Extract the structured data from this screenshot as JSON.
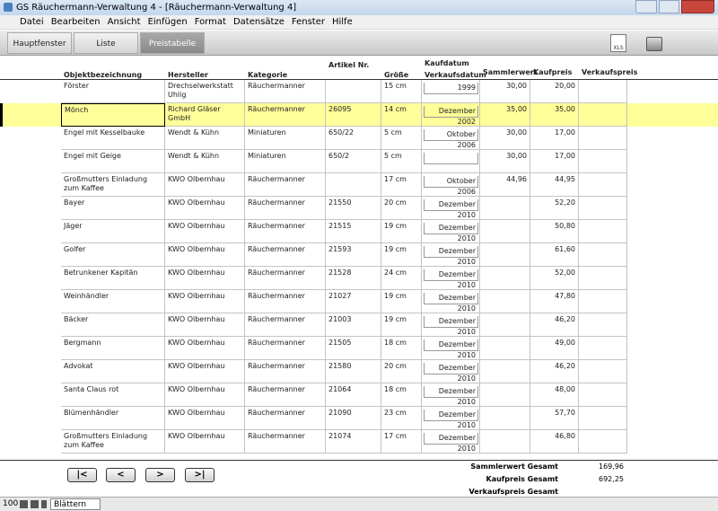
{
  "window": {
    "title": "GS Räuchermann-Verwaltung 4 - [Räuchermann-Verwaltung 4]",
    "menu": [
      "Datei",
      "Bearbeiten",
      "Ansicht",
      "Einfügen",
      "Format",
      "Datensätze",
      "Fenster",
      "Hilfe"
    ]
  },
  "tabs": [
    "Hauptfenster",
    "Liste",
    "Preistabelle"
  ],
  "active_tab": 2,
  "toolbar": {
    "xls_icon": "XLS"
  },
  "table": {
    "header_above": "Kaufdatum",
    "headers": [
      "Objektbezeichnung",
      "Hersteller",
      "Kategorie",
      "Artikel Nr.",
      "Größe",
      "Verkaufsdatum",
      "Sammlerwert",
      "Kaufpreis",
      "Verkaufspreis"
    ],
    "selected_row": 1,
    "rows": [
      [
        "Förster",
        "Drechselwerkstatt Uhlig",
        "Räuchermanner",
        null,
        "15 cm",
        "1999",
        "30,00",
        "20,00",
        null
      ],
      [
        "Mönch",
        "Richard Gläser GmbH",
        "Räuchermanner",
        "26095",
        "14 cm",
        "Dezember 2002",
        "35,00",
        "35,00",
        null
      ],
      [
        "Engel mit Kesselbauke",
        "Wendt & Kühn",
        "Miniaturen",
        "650/22",
        "5 cm",
        "Oktober 2006",
        "30,00",
        "17,00",
        null
      ],
      [
        "Engel mit Geige",
        "Wendt & Kühn",
        "Miniaturen",
        "650/2",
        "5 cm",
        null,
        "30,00",
        "17,00",
        null
      ],
      [
        "Großmutters Einladung zum Kaffee",
        "KWO Olbernhau",
        "Räuchermanner",
        null,
        "17 cm",
        "Oktober 2006",
        "44,96",
        "44,95",
        null
      ],
      [
        "Bayer",
        "KWO Olbernhau",
        "Räuchermanner",
        "21550",
        "20 cm",
        "Dezember 2010",
        null,
        "52,20",
        null
      ],
      [
        "Jäger",
        "KWO Olbernhau",
        "Räuchermanner",
        "21515",
        "19 cm",
        "Dezember 2010",
        null,
        "50,80",
        null
      ],
      [
        "Golfer",
        "KWO Olbernhau",
        "Räuchermanner",
        "21593",
        "19 cm",
        "Dezember 2010",
        null,
        "61,60",
        null
      ],
      [
        "Betrunkener Kapitän",
        "KWO Olbernhau",
        "Räuchermanner",
        "21528",
        "24 cm",
        "Dezember 2010",
        null,
        "52,00",
        null
      ],
      [
        "Weinhändler",
        "KWO Olbernhau",
        "Räuchermanner",
        "21027",
        "19 cm",
        "Dezember 2010",
        null,
        "47,80",
        null
      ],
      [
        "Bäcker",
        "KWO Olbernhau",
        "Räuchermanner",
        "21003",
        "19 cm",
        "Dezember 2010",
        null,
        "46,20",
        null
      ],
      [
        "Bergmann",
        "KWO Olbernhau",
        "Räuchermanner",
        "21505",
        "18 cm",
        "Dezember 2010",
        null,
        "49,00",
        null
      ],
      [
        "Advokat",
        "KWO Olbernhau",
        "Räuchermanner",
        "21580",
        "20 cm",
        "Dezember 2010",
        null,
        "46,20",
        null
      ],
      [
        "Santa Claus rot",
        "KWO Olbernhau",
        "Räuchermanner",
        "21064",
        "18 cm",
        "Dezember 2010",
        null,
        "48,00",
        null
      ],
      [
        "Blümenhändler",
        "KWO Olbernhau",
        "Räuchermanner",
        "21090",
        "23 cm",
        "Dezember 2010",
        null,
        "57,70",
        null
      ],
      [
        "Großmutters Einladung zum Kaffee",
        "KWO Olbernhau",
        "Räuchermanner",
        "21074",
        "17 cm",
        "Dezember 2010",
        null,
        "46,80",
        null
      ]
    ]
  },
  "navigation": [
    "|<",
    "<",
    ">",
    ">|"
  ],
  "totals": [
    {
      "label": "Sammlerwert Gesamt",
      "value": "169,96"
    },
    {
      "label": "Kaufpreis Gesamt",
      "value": "692,25"
    },
    {
      "label": "Verkaufspreis Gesamt",
      "value": null
    }
  ],
  "status": {
    "zoom": "100",
    "mode": "Blättern"
  }
}
